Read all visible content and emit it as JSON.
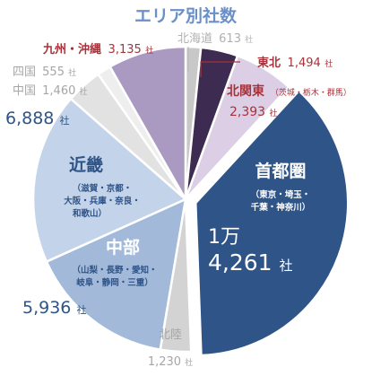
{
  "chart_data": {
    "type": "pie",
    "title": "エリア別社数",
    "unit": "社",
    "colors": {
      "title": "#6b8fc7",
      "hokkaido": "#c8c8c8",
      "tohoku": "#3d2b52",
      "kitakanto": "#dccfe5",
      "shutoken": "#2f5487",
      "hokuriku": "#d3d3d3",
      "chubu": "#a2b9da",
      "kinki": "#c3d3ea",
      "chugoku": "#e2e2e2",
      "shikoku": "#eeeeee",
      "kyushu": "#aa9ac2",
      "red_label": "#a8323a",
      "navy_label": "#2f5487",
      "gray_label": "#8a8a8a"
    },
    "slices": [
      {
        "key": "hokkaido",
        "name": "北海道",
        "value": 613,
        "value_text": "613",
        "sub": ""
      },
      {
        "key": "tohoku",
        "name": "東北",
        "value": 1494,
        "value_text": "1,494",
        "sub": ""
      },
      {
        "key": "kitakanto",
        "name": "北関東",
        "value": 2393,
        "value_text": "2,393",
        "sub": "（茨城・栃木・群馬）"
      },
      {
        "key": "shutoken",
        "name": "首都圏",
        "value": 14261,
        "value_text_line1": "1万",
        "value_text_line2": "4,261",
        "sub_line1": "（東京・埼玉・",
        "sub_line2": "千葉・神奈川）"
      },
      {
        "key": "hokuriku",
        "name": "北陸",
        "value": 1230,
        "value_text": "1,230",
        "sub": ""
      },
      {
        "key": "chubu",
        "name": "中部",
        "value": 5936,
        "value_text": "5,936",
        "sub_line1": "（山梨・長野・愛知・",
        "sub_line2": "岐阜・静岡・三重）"
      },
      {
        "key": "kinki",
        "name": "近畿",
        "value": 6888,
        "value_text": "6,888",
        "sub_line1": "（滋賀・京都・",
        "sub_line2": "大阪・兵庫・奈良・",
        "sub_line3": "和歌山）"
      },
      {
        "key": "chugoku",
        "name": "中国",
        "value": 1460,
        "value_text": "1,460",
        "sub": ""
      },
      {
        "key": "shikoku",
        "name": "四国",
        "value": 555,
        "value_text": "555",
        "sub": ""
      },
      {
        "key": "kyushu",
        "name": "九州・沖縄",
        "value": 3135,
        "value_text": "3,135",
        "sub": ""
      }
    ]
  }
}
